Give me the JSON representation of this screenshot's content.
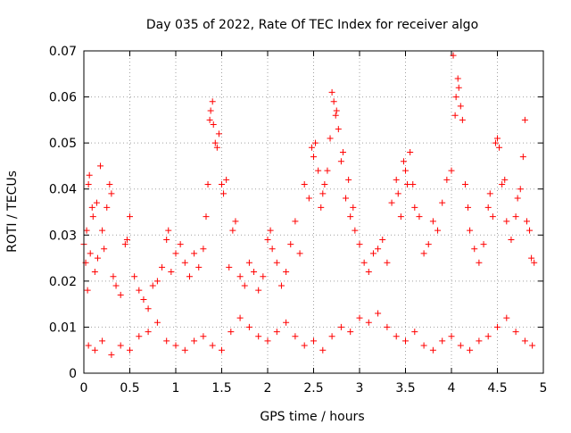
{
  "chart_data": {
    "type": "scatter",
    "title": "Day 035 of 2022, Rate Of TEC Index for receiver algo",
    "xlabel": "GPS time / hours",
    "ylabel": "ROTI / TECUs",
    "xlim": [
      0,
      5
    ],
    "ylim": [
      0,
      0.07
    ],
    "xticks": [
      0,
      0.5,
      1,
      1.5,
      2,
      2.5,
      3,
      3.5,
      4,
      4.5,
      5
    ],
    "xtick_labels": [
      "0",
      "0.5",
      "1",
      "1.5",
      "2",
      "2.5",
      "3",
      "3.5",
      "4",
      "4.5",
      "5"
    ],
    "yticks": [
      0,
      0.01,
      0.02,
      0.03,
      0.04,
      0.05,
      0.06,
      0.07
    ],
    "ytick_labels": [
      "0",
      "0.01",
      "0.02",
      "0.03",
      "0.04",
      "0.05",
      "0.06",
      "0.07"
    ],
    "grid": true,
    "marker": "+",
    "marker_color": "#ff0000",
    "series": [
      {
        "points": [
          [
            0.0,
            0.028
          ],
          [
            0.02,
            0.024
          ],
          [
            0.03,
            0.031
          ],
          [
            0.04,
            0.018
          ],
          [
            0.05,
            0.041
          ],
          [
            0.06,
            0.043
          ],
          [
            0.07,
            0.026
          ],
          [
            0.09,
            0.036
          ],
          [
            0.1,
            0.034
          ],
          [
            0.12,
            0.022
          ],
          [
            0.14,
            0.037
          ],
          [
            0.15,
            0.025
          ],
          [
            0.18,
            0.045
          ],
          [
            0.2,
            0.031
          ],
          [
            0.22,
            0.027
          ],
          [
            0.25,
            0.036
          ],
          [
            0.28,
            0.041
          ],
          [
            0.3,
            0.039
          ],
          [
            0.32,
            0.021
          ],
          [
            0.35,
            0.019
          ],
          [
            0.4,
            0.017
          ],
          [
            0.45,
            0.028
          ],
          [
            0.47,
            0.029
          ],
          [
            0.5,
            0.034
          ],
          [
            0.55,
            0.021
          ],
          [
            0.6,
            0.018
          ],
          [
            0.65,
            0.016
          ],
          [
            0.7,
            0.014
          ],
          [
            0.75,
            0.019
          ],
          [
            0.8,
            0.02
          ],
          [
            0.85,
            0.023
          ],
          [
            0.9,
            0.029
          ],
          [
            0.92,
            0.031
          ],
          [
            0.95,
            0.022
          ],
          [
            1.0,
            0.026
          ],
          [
            1.05,
            0.028
          ],
          [
            1.1,
            0.024
          ],
          [
            1.15,
            0.021
          ],
          [
            1.2,
            0.026
          ],
          [
            1.25,
            0.023
          ],
          [
            1.3,
            0.027
          ],
          [
            1.33,
            0.034
          ],
          [
            1.35,
            0.041
          ],
          [
            1.37,
            0.055
          ],
          [
            1.38,
            0.057
          ],
          [
            1.4,
            0.059
          ],
          [
            1.41,
            0.054
          ],
          [
            1.43,
            0.05
          ],
          [
            1.45,
            0.049
          ],
          [
            1.47,
            0.052
          ],
          [
            1.5,
            0.041
          ],
          [
            1.52,
            0.039
          ],
          [
            1.55,
            0.042
          ],
          [
            1.58,
            0.023
          ],
          [
            1.62,
            0.031
          ],
          [
            1.65,
            0.033
          ],
          [
            1.7,
            0.021
          ],
          [
            1.75,
            0.019
          ],
          [
            1.8,
            0.024
          ],
          [
            1.85,
            0.022
          ],
          [
            1.9,
            0.018
          ],
          [
            1.95,
            0.021
          ],
          [
            2.0,
            0.029
          ],
          [
            2.03,
            0.031
          ],
          [
            2.05,
            0.027
          ],
          [
            2.1,
            0.024
          ],
          [
            2.15,
            0.019
          ],
          [
            2.2,
            0.022
          ],
          [
            2.25,
            0.028
          ],
          [
            2.3,
            0.033
          ],
          [
            2.35,
            0.026
          ],
          [
            2.4,
            0.041
          ],
          [
            2.45,
            0.038
          ],
          [
            2.48,
            0.049
          ],
          [
            2.5,
            0.047
          ],
          [
            2.52,
            0.05
          ],
          [
            2.55,
            0.044
          ],
          [
            2.58,
            0.036
          ],
          [
            2.6,
            0.039
          ],
          [
            2.62,
            0.041
          ],
          [
            2.65,
            0.044
          ],
          [
            2.68,
            0.051
          ],
          [
            2.7,
            0.061
          ],
          [
            2.72,
            0.059
          ],
          [
            2.74,
            0.056
          ],
          [
            2.75,
            0.057
          ],
          [
            2.77,
            0.053
          ],
          [
            2.8,
            0.046
          ],
          [
            2.82,
            0.048
          ],
          [
            2.85,
            0.038
          ],
          [
            2.88,
            0.042
          ],
          [
            2.9,
            0.034
          ],
          [
            2.93,
            0.036
          ],
          [
            2.95,
            0.031
          ],
          [
            3.0,
            0.028
          ],
          [
            3.05,
            0.024
          ],
          [
            3.1,
            0.022
          ],
          [
            3.15,
            0.026
          ],
          [
            3.2,
            0.027
          ],
          [
            3.25,
            0.029
          ],
          [
            3.3,
            0.024
          ],
          [
            3.35,
            0.037
          ],
          [
            3.4,
            0.042
          ],
          [
            3.42,
            0.039
          ],
          [
            3.45,
            0.034
          ],
          [
            3.48,
            0.046
          ],
          [
            3.5,
            0.044
          ],
          [
            3.52,
            0.041
          ],
          [
            3.55,
            0.048
          ],
          [
            3.58,
            0.041
          ],
          [
            3.6,
            0.036
          ],
          [
            3.65,
            0.034
          ],
          [
            3.7,
            0.026
          ],
          [
            3.75,
            0.028
          ],
          [
            3.8,
            0.033
          ],
          [
            3.85,
            0.031
          ],
          [
            3.9,
            0.037
          ],
          [
            3.95,
            0.042
          ],
          [
            4.0,
            0.044
          ],
          [
            4.02,
            0.069
          ],
          [
            4.04,
            0.056
          ],
          [
            4.05,
            0.06
          ],
          [
            4.07,
            0.064
          ],
          [
            4.08,
            0.062
          ],
          [
            4.1,
            0.058
          ],
          [
            4.12,
            0.055
          ],
          [
            4.15,
            0.041
          ],
          [
            4.18,
            0.036
          ],
          [
            4.2,
            0.031
          ],
          [
            4.25,
            0.027
          ],
          [
            4.3,
            0.024
          ],
          [
            4.35,
            0.028
          ],
          [
            4.4,
            0.036
          ],
          [
            4.42,
            0.039
          ],
          [
            4.45,
            0.034
          ],
          [
            4.48,
            0.05
          ],
          [
            4.5,
            0.051
          ],
          [
            4.52,
            0.049
          ],
          [
            4.55,
            0.041
          ],
          [
            4.58,
            0.042
          ],
          [
            4.6,
            0.033
          ],
          [
            4.65,
            0.029
          ],
          [
            4.7,
            0.034
          ],
          [
            4.72,
            0.038
          ],
          [
            4.75,
            0.04
          ],
          [
            4.78,
            0.047
          ],
          [
            4.8,
            0.055
          ],
          [
            4.82,
            0.033
          ],
          [
            4.85,
            0.031
          ],
          [
            4.87,
            0.025
          ],
          [
            4.9,
            0.024
          ],
          [
            0.05,
            0.006
          ],
          [
            0.12,
            0.005
          ],
          [
            0.2,
            0.007
          ],
          [
            0.3,
            0.004
          ],
          [
            0.4,
            0.006
          ],
          [
            0.5,
            0.005
          ],
          [
            0.6,
            0.008
          ],
          [
            0.7,
            0.009
          ],
          [
            0.8,
            0.011
          ],
          [
            0.9,
            0.007
          ],
          [
            1.0,
            0.006
          ],
          [
            1.1,
            0.005
          ],
          [
            1.2,
            0.007
          ],
          [
            1.3,
            0.008
          ],
          [
            1.4,
            0.006
          ],
          [
            1.5,
            0.005
          ],
          [
            1.6,
            0.009
          ],
          [
            1.7,
            0.012
          ],
          [
            1.8,
            0.01
          ],
          [
            1.9,
            0.008
          ],
          [
            2.0,
            0.007
          ],
          [
            2.1,
            0.009
          ],
          [
            2.2,
            0.011
          ],
          [
            2.3,
            0.008
          ],
          [
            2.4,
            0.006
          ],
          [
            2.5,
            0.007
          ],
          [
            2.6,
            0.005
          ],
          [
            2.7,
            0.008
          ],
          [
            2.8,
            0.01
          ],
          [
            2.9,
            0.009
          ],
          [
            3.0,
            0.012
          ],
          [
            3.1,
            0.011
          ],
          [
            3.2,
            0.013
          ],
          [
            3.3,
            0.01
          ],
          [
            3.4,
            0.008
          ],
          [
            3.5,
            0.007
          ],
          [
            3.6,
            0.009
          ],
          [
            3.7,
            0.006
          ],
          [
            3.8,
            0.005
          ],
          [
            3.9,
            0.007
          ],
          [
            4.0,
            0.008
          ],
          [
            4.1,
            0.006
          ],
          [
            4.2,
            0.005
          ],
          [
            4.3,
            0.007
          ],
          [
            4.4,
            0.008
          ],
          [
            4.5,
            0.01
          ],
          [
            4.6,
            0.012
          ],
          [
            4.7,
            0.009
          ],
          [
            4.8,
            0.007
          ],
          [
            4.88,
            0.006
          ]
        ]
      }
    ]
  }
}
